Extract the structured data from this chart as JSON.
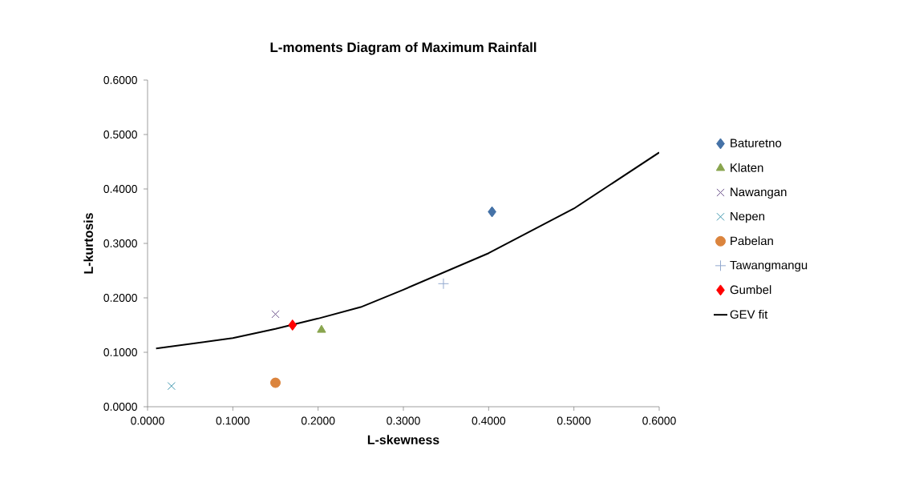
{
  "chart_data": {
    "type": "scatter",
    "title": "L-moments Diagram of Maximum Rainfall",
    "xlabel": "L-skewness",
    "ylabel": "L-kurtosis",
    "xlim": [
      0,
      0.6
    ],
    "ylim": [
      0,
      0.6
    ],
    "xticks": [
      {
        "value": 0,
        "label": "0.0000"
      },
      {
        "value": 0.1,
        "label": "0.1000"
      },
      {
        "value": 0.2,
        "label": "0.2000"
      },
      {
        "value": 0.3,
        "label": "0.3000"
      },
      {
        "value": 0.4,
        "label": "0.4000"
      },
      {
        "value": 0.5,
        "label": "0.5000"
      },
      {
        "value": 0.6,
        "label": "0.6000"
      }
    ],
    "yticks": [
      {
        "value": 0,
        "label": "0.0000"
      },
      {
        "value": 0.1,
        "label": "0.1000"
      },
      {
        "value": 0.2,
        "label": "0.2000"
      },
      {
        "value": 0.3,
        "label": "0.3000"
      },
      {
        "value": 0.4,
        "label": "0.4000"
      },
      {
        "value": 0.5,
        "label": "0.5000"
      },
      {
        "value": 0.6,
        "label": "0.6000"
      }
    ],
    "grid": false,
    "legend": "right",
    "series": [
      {
        "name": "Baturetno",
        "color": "#4572a7",
        "marker": "diamond",
        "x": [
          0.404
        ],
        "values": [
          0.358
        ]
      },
      {
        "name": "Klaten",
        "color": "#89a54e",
        "marker": "triangle",
        "x": [
          0.204
        ],
        "values": [
          0.141
        ]
      },
      {
        "name": "Nawangan",
        "color": "#71588f",
        "marker": "cross",
        "x": [
          0.15
        ],
        "values": [
          0.17
        ]
      },
      {
        "name": "Nepen",
        "color": "#4198af",
        "marker": "cross",
        "x": [
          0.028
        ],
        "values": [
          0.038
        ]
      },
      {
        "name": "Pabelan",
        "color": "#db843d",
        "marker": "circle",
        "x": [
          0.15
        ],
        "values": [
          0.044
        ]
      },
      {
        "name": "Tawangmangu",
        "color": "#93a9cf",
        "marker": "plus",
        "x": [
          0.347
        ],
        "values": [
          0.226
        ]
      },
      {
        "name": "Gumbel",
        "color": "#ff0000",
        "marker": "diamond",
        "x": [
          0.17
        ],
        "values": [
          0.15
        ]
      },
      {
        "name": "GEV fit",
        "type": "line",
        "color": "#000000",
        "marker": "none",
        "line_style": "solid",
        "x": [
          0.01,
          0.1,
          0.15,
          0.2,
          0.25,
          0.3,
          0.4,
          0.5,
          0.6
        ],
        "values": [
          0.107,
          0.126,
          0.143,
          0.162,
          0.183,
          0.215,
          0.282,
          0.364,
          0.467
        ]
      }
    ]
  }
}
